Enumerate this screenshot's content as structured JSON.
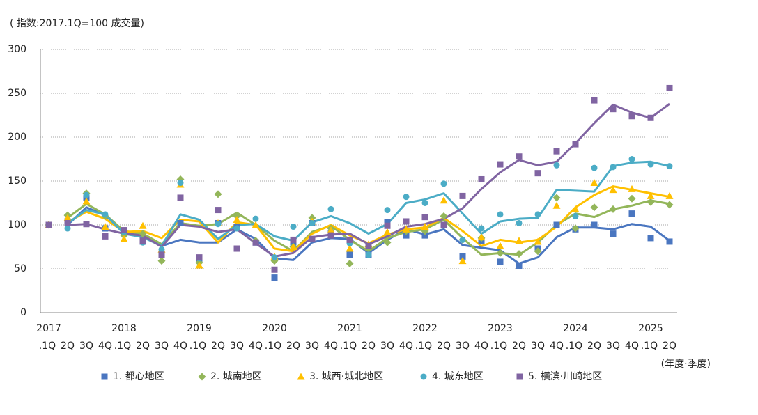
{
  "chart_data": {
    "type": "line",
    "title": "( 指数:2017.1Q=100 成交量)",
    "x_label": "(年度·季度)",
    "categories": [
      ".1Q",
      "2Q",
      "3Q",
      "4Q",
      ".1Q",
      "2Q",
      "3Q",
      "4Q",
      ".1Q",
      "2Q",
      "3Q",
      "4Q",
      ".1Q",
      "2Q",
      "3Q",
      "4Q",
      ".1Q",
      "2Q",
      "3Q",
      "4Q",
      ".1Q",
      "2Q",
      "3Q",
      "4Q",
      ".1Q",
      "2Q",
      "3Q",
      "4Q",
      ".1Q",
      "2Q",
      "3Q",
      "4Q",
      ".1Q",
      "2Q"
    ],
    "years": [
      "2017",
      null,
      null,
      null,
      "2018",
      null,
      null,
      null,
      "2019",
      null,
      null,
      null,
      "2020",
      null,
      null,
      null,
      "2021",
      null,
      null,
      null,
      "2022",
      null,
      null,
      null,
      "2023",
      null,
      null,
      null,
      "2024",
      null,
      null,
      null,
      "2025",
      null
    ],
    "ylim": [
      0,
      300
    ],
    "yticks": [
      0,
      50,
      100,
      150,
      200,
      250,
      300
    ],
    "grid": true,
    "series": [
      {
        "name": "1. 都心地区",
        "color": "#4a76c0",
        "marker": "square",
        "values": [
          100,
          104,
          131,
          96,
          92,
          81,
          66,
          102,
          60,
          102,
          98,
          80,
          40,
          80,
          102,
          90,
          66,
          66,
          103,
          88,
          88,
          100,
          64,
          82,
          58,
          53,
          73,
          100,
          95,
          100,
          90,
          113,
          85,
          81
        ],
        "trend": [
          null,
          100,
          120,
          111,
          92,
          88,
          76,
          83,
          80,
          80,
          95,
          84,
          62,
          60,
          80,
          85,
          84,
          68,
          83,
          95,
          89,
          95,
          77,
          74,
          71,
          56,
          63,
          86,
          97,
          97,
          95,
          101,
          98,
          82
        ]
      },
      {
        "name": "2. 城南地区",
        "color": "#93b65a",
        "marker": "diamond",
        "values": [
          100,
          111,
          136,
          110,
          88,
          90,
          59,
          152,
          57,
          135,
          110,
          82,
          59,
          75,
          108,
          96,
          56,
          75,
          80,
          93,
          93,
          110,
          83,
          85,
          68,
          67,
          70,
          131,
          96,
          120,
          118,
          130,
          126,
          123
        ],
        "trend": [
          null,
          108,
          124,
          112,
          93,
          90,
          78,
          102,
          99,
          101,
          114,
          100,
          82,
          70,
          92,
          99,
          83,
          70,
          85,
          92,
          95,
          106,
          85,
          66,
          68,
          66,
          80,
          100,
          113,
          109,
          118,
          122,
          128,
          124
        ]
      },
      {
        "name": "3. 城西·城北地区",
        "color": "#ffc000",
        "marker": "triangle",
        "values": [
          100,
          108,
          127,
          98,
          84,
          99,
          72,
          146,
          54,
          102,
          106,
          100,
          64,
          75,
          104,
          94,
          73,
          78,
          92,
          95,
          98,
          128,
          59,
          86,
          76,
          82,
          81,
          122,
          118,
          148,
          140,
          141,
          133,
          133
        ],
        "trend": [
          null,
          103,
          115,
          107,
          92,
          93,
          85,
          106,
          104,
          80,
          103,
          100,
          73,
          70,
          90,
          100,
          88,
          79,
          89,
          95,
          97,
          108,
          93,
          76,
          83,
          80,
          83,
          98,
          120,
          134,
          144,
          140,
          136,
          132
        ]
      },
      {
        "name": "4. 城东地区",
        "color": "#4bacc6",
        "marker": "circle",
        "values": [
          100,
          96,
          134,
          112,
          92,
          80,
          72,
          148,
          62,
          101,
          96,
          107,
          63,
          98,
          102,
          118,
          79,
          66,
          117,
          132,
          125,
          147,
          83,
          96,
          112,
          102,
          112,
          168,
          110,
          165,
          166,
          175,
          169,
          167
        ],
        "trend": [
          null,
          102,
          117,
          112,
          90,
          86,
          76,
          112,
          106,
          84,
          100,
          101,
          87,
          82,
          103,
          110,
          102,
          90,
          101,
          125,
          129,
          136,
          113,
          90,
          104,
          107,
          108,
          140,
          139,
          138,
          167,
          171,
          172,
          167
        ]
      },
      {
        "name": "5. 横滨·川崎地区",
        "color": "#8064a2",
        "marker": "square",
        "values": [
          100,
          102,
          101,
          87,
          94,
          82,
          66,
          131,
          63,
          117,
          73,
          80,
          49,
          83,
          84,
          88,
          83,
          76,
          99,
          104,
          109,
          100,
          133,
          152,
          169,
          178,
          159,
          184,
          192,
          242,
          232,
          224,
          222,
          256
        ],
        "trend": [
          null,
          100,
          101,
          95,
          90,
          88,
          75,
          100,
          98,
          92,
          95,
          79,
          64,
          68,
          86,
          89,
          90,
          78,
          87,
          98,
          101,
          107,
          119,
          141,
          160,
          174,
          168,
          172,
          193,
          216,
          237,
          228,
          222,
          238
        ]
      }
    ]
  }
}
